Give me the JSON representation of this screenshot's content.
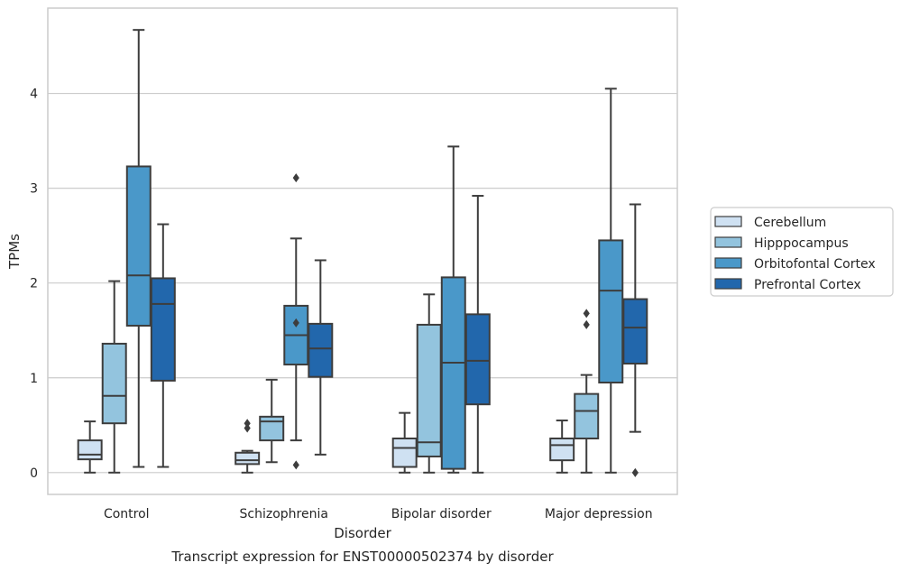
{
  "chart_data": {
    "type": "box",
    "title": "",
    "caption": "Transcript expression for ENST00000502374 by disorder",
    "xlabel": "Disorder",
    "ylabel": "TPMs",
    "categories": [
      "Control",
      "Schizophrenia",
      "Bipolar disorder",
      "Major depression"
    ],
    "ylim": [
      -0.23,
      4.9
    ],
    "yticks": [
      0,
      1,
      2,
      3,
      4
    ],
    "grid": "horizontal",
    "legend_position": "right",
    "series": [
      {
        "name": "Cerebellum",
        "color": "#cfe1f2",
        "boxes": [
          {
            "whisker_low": 0.0,
            "q1": 0.14,
            "median": 0.19,
            "q3": 0.34,
            "whisker_high": 0.54,
            "outliers": []
          },
          {
            "whisker_low": 0.0,
            "q1": 0.09,
            "median": 0.13,
            "q3": 0.21,
            "whisker_high": 0.23,
            "outliers": [
              0.47,
              0.52
            ]
          },
          {
            "whisker_low": 0.0,
            "q1": 0.06,
            "median": 0.26,
            "q3": 0.36,
            "whisker_high": 0.63,
            "outliers": []
          },
          {
            "whisker_low": 0.0,
            "q1": 0.13,
            "median": 0.29,
            "q3": 0.36,
            "whisker_high": 0.55,
            "outliers": []
          }
        ]
      },
      {
        "name": "Hipppocampus",
        "color": "#93c4de",
        "boxes": [
          {
            "whisker_low": 0.0,
            "q1": 0.52,
            "median": 0.81,
            "q3": 1.36,
            "whisker_high": 2.02,
            "outliers": []
          },
          {
            "whisker_low": 0.11,
            "q1": 0.34,
            "median": 0.54,
            "q3": 0.59,
            "whisker_high": 0.98,
            "outliers": []
          },
          {
            "whisker_low": 0.0,
            "q1": 0.17,
            "median": 0.32,
            "q3": 1.56,
            "whisker_high": 1.88,
            "outliers": []
          },
          {
            "whisker_low": 0.0,
            "q1": 0.36,
            "median": 0.65,
            "q3": 0.83,
            "whisker_high": 1.03,
            "outliers": [
              1.56,
              1.68
            ]
          }
        ]
      },
      {
        "name": "Orbitofontal Cortex",
        "color": "#4a98c9",
        "boxes": [
          {
            "whisker_low": 0.06,
            "q1": 1.55,
            "median": 2.08,
            "q3": 3.23,
            "whisker_high": 4.67,
            "outliers": []
          },
          {
            "whisker_low": 0.34,
            "q1": 1.14,
            "median": 1.45,
            "q3": 1.76,
            "whisker_high": 2.47,
            "outliers": [
              1.58,
              3.11,
              0.08
            ]
          },
          {
            "whisker_low": 0.0,
            "q1": 0.04,
            "median": 1.16,
            "q3": 2.06,
            "whisker_high": 3.44,
            "outliers": []
          },
          {
            "whisker_low": 0.0,
            "q1": 0.95,
            "median": 1.92,
            "q3": 2.45,
            "whisker_high": 4.05,
            "outliers": []
          }
        ]
      },
      {
        "name": "Prefrontal Cortex",
        "color": "#2267ac",
        "boxes": [
          {
            "whisker_low": 0.06,
            "q1": 0.97,
            "median": 1.78,
            "q3": 2.05,
            "whisker_high": 2.62,
            "outliers": []
          },
          {
            "whisker_low": 0.19,
            "q1": 1.01,
            "median": 1.31,
            "q3": 1.57,
            "whisker_high": 2.24,
            "outliers": []
          },
          {
            "whisker_low": 0.0,
            "q1": 0.72,
            "median": 1.18,
            "q3": 1.67,
            "whisker_high": 2.92,
            "outliers": []
          },
          {
            "whisker_low": 0.43,
            "q1": 1.15,
            "median": 1.53,
            "q3": 1.83,
            "whisker_high": 2.83,
            "outliers": [
              0.0
            ]
          }
        ]
      }
    ],
    "style": {
      "edge_color": "#3d3d3d",
      "grid_color": "#cccccc",
      "frame_color": "#cccccc",
      "background": "#ffffff"
    }
  }
}
